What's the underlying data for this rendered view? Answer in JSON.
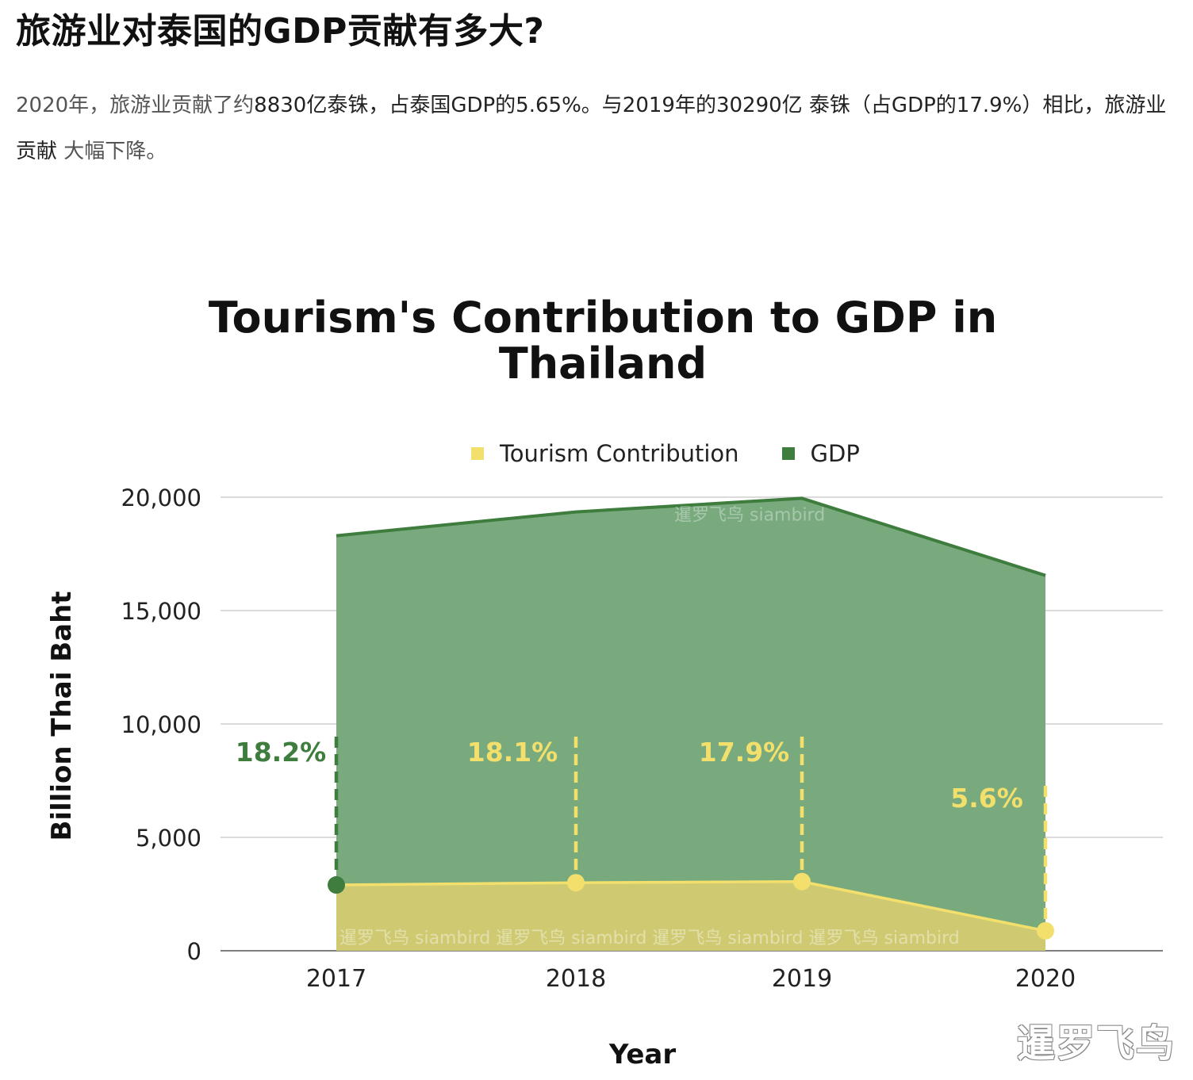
{
  "article": {
    "heading": "旅游业对泰国的GDP贡献有多大?",
    "paragraph_parts": [
      "2020年，旅游业贡献了约",
      "8830亿泰铢，占泰国GDP的5.65%。与2019年的30290亿 泰铢（占GDP的17.9%）相比，旅游业贡献",
      " 大幅下降。"
    ]
  },
  "chart_data": {
    "type": "area",
    "title": "Tourism's Contribution to GDP in Thailand",
    "xlabel": "Year",
    "ylabel": "Billion Thai Baht",
    "categories": [
      "2017",
      "2018",
      "2019",
      "2020"
    ],
    "ylim": [
      0,
      20000
    ],
    "yticks": [
      0,
      5000,
      10000,
      15000,
      20000
    ],
    "ytick_labels": [
      "0",
      "5,000",
      "10,000",
      "15,000",
      "20,000"
    ],
    "grid": true,
    "legend_position": "top-center",
    "series": [
      {
        "name": "Tourism Contribution",
        "values": [
          2900,
          3000,
          3050,
          880
        ],
        "color": "#f2df6c"
      },
      {
        "name": "GDP",
        "values": [
          18300,
          19350,
          19950,
          16550
        ],
        "color": "#3e7d3e"
      }
    ],
    "annotations": [
      {
        "x": "2017",
        "label": "18.2%",
        "color": "#3e7d3e"
      },
      {
        "x": "2018",
        "label": "18.1%",
        "color": "#f2df6c"
      },
      {
        "x": "2019",
        "label": "17.9%",
        "color": "#f2df6c"
      },
      {
        "x": "2020",
        "label": "5.6%",
        "color": "#f2df6c"
      }
    ],
    "watermark": "暹罗飞鸟 siambird"
  },
  "brand_mark": "暹罗飞鸟"
}
